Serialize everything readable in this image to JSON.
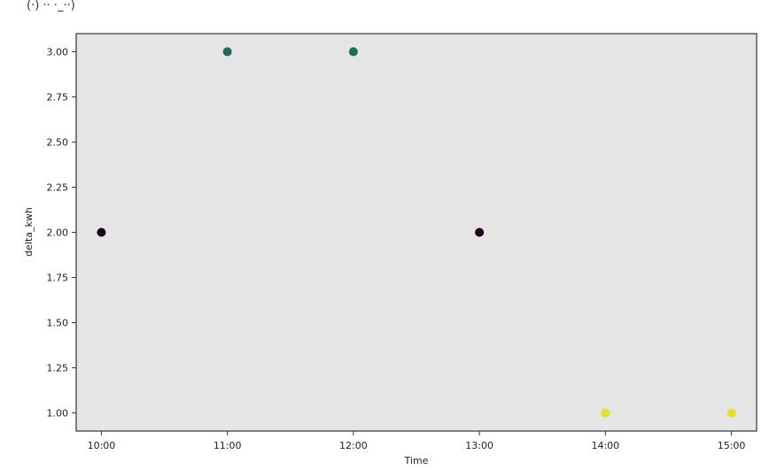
{
  "header_fragment": "(·) ·· ·_··)",
  "chart_data": {
    "type": "scatter",
    "xlabel": "Time",
    "ylabel": "delta_kwh",
    "x_ticks": [
      "10:00",
      "11:00",
      "12:00",
      "13:00",
      "14:00",
      "15:00"
    ],
    "y_ticks": [
      "1.00",
      "1.25",
      "1.50",
      "1.75",
      "2.00",
      "2.25",
      "2.50",
      "2.75",
      "3.00"
    ],
    "xlim": [
      "09:48",
      "15:12"
    ],
    "ylim": [
      0.9,
      3.1
    ],
    "grid": false,
    "points": [
      {
        "x": "10:00",
        "y": 2.0,
        "color": "#1a001a"
      },
      {
        "x": "11:00",
        "y": 3.0,
        "color": "#1f6b5e"
      },
      {
        "x": "12:00",
        "y": 3.0,
        "color": "#1f6b5e"
      },
      {
        "x": "13:00",
        "y": 2.0,
        "color": "#1a001a"
      },
      {
        "x": "14:00",
        "y": 1.0,
        "color": "#e6e01f"
      },
      {
        "x": "15:00",
        "y": 1.0,
        "color": "#e6e01f"
      }
    ],
    "plot_background": "#e5e5e5"
  }
}
